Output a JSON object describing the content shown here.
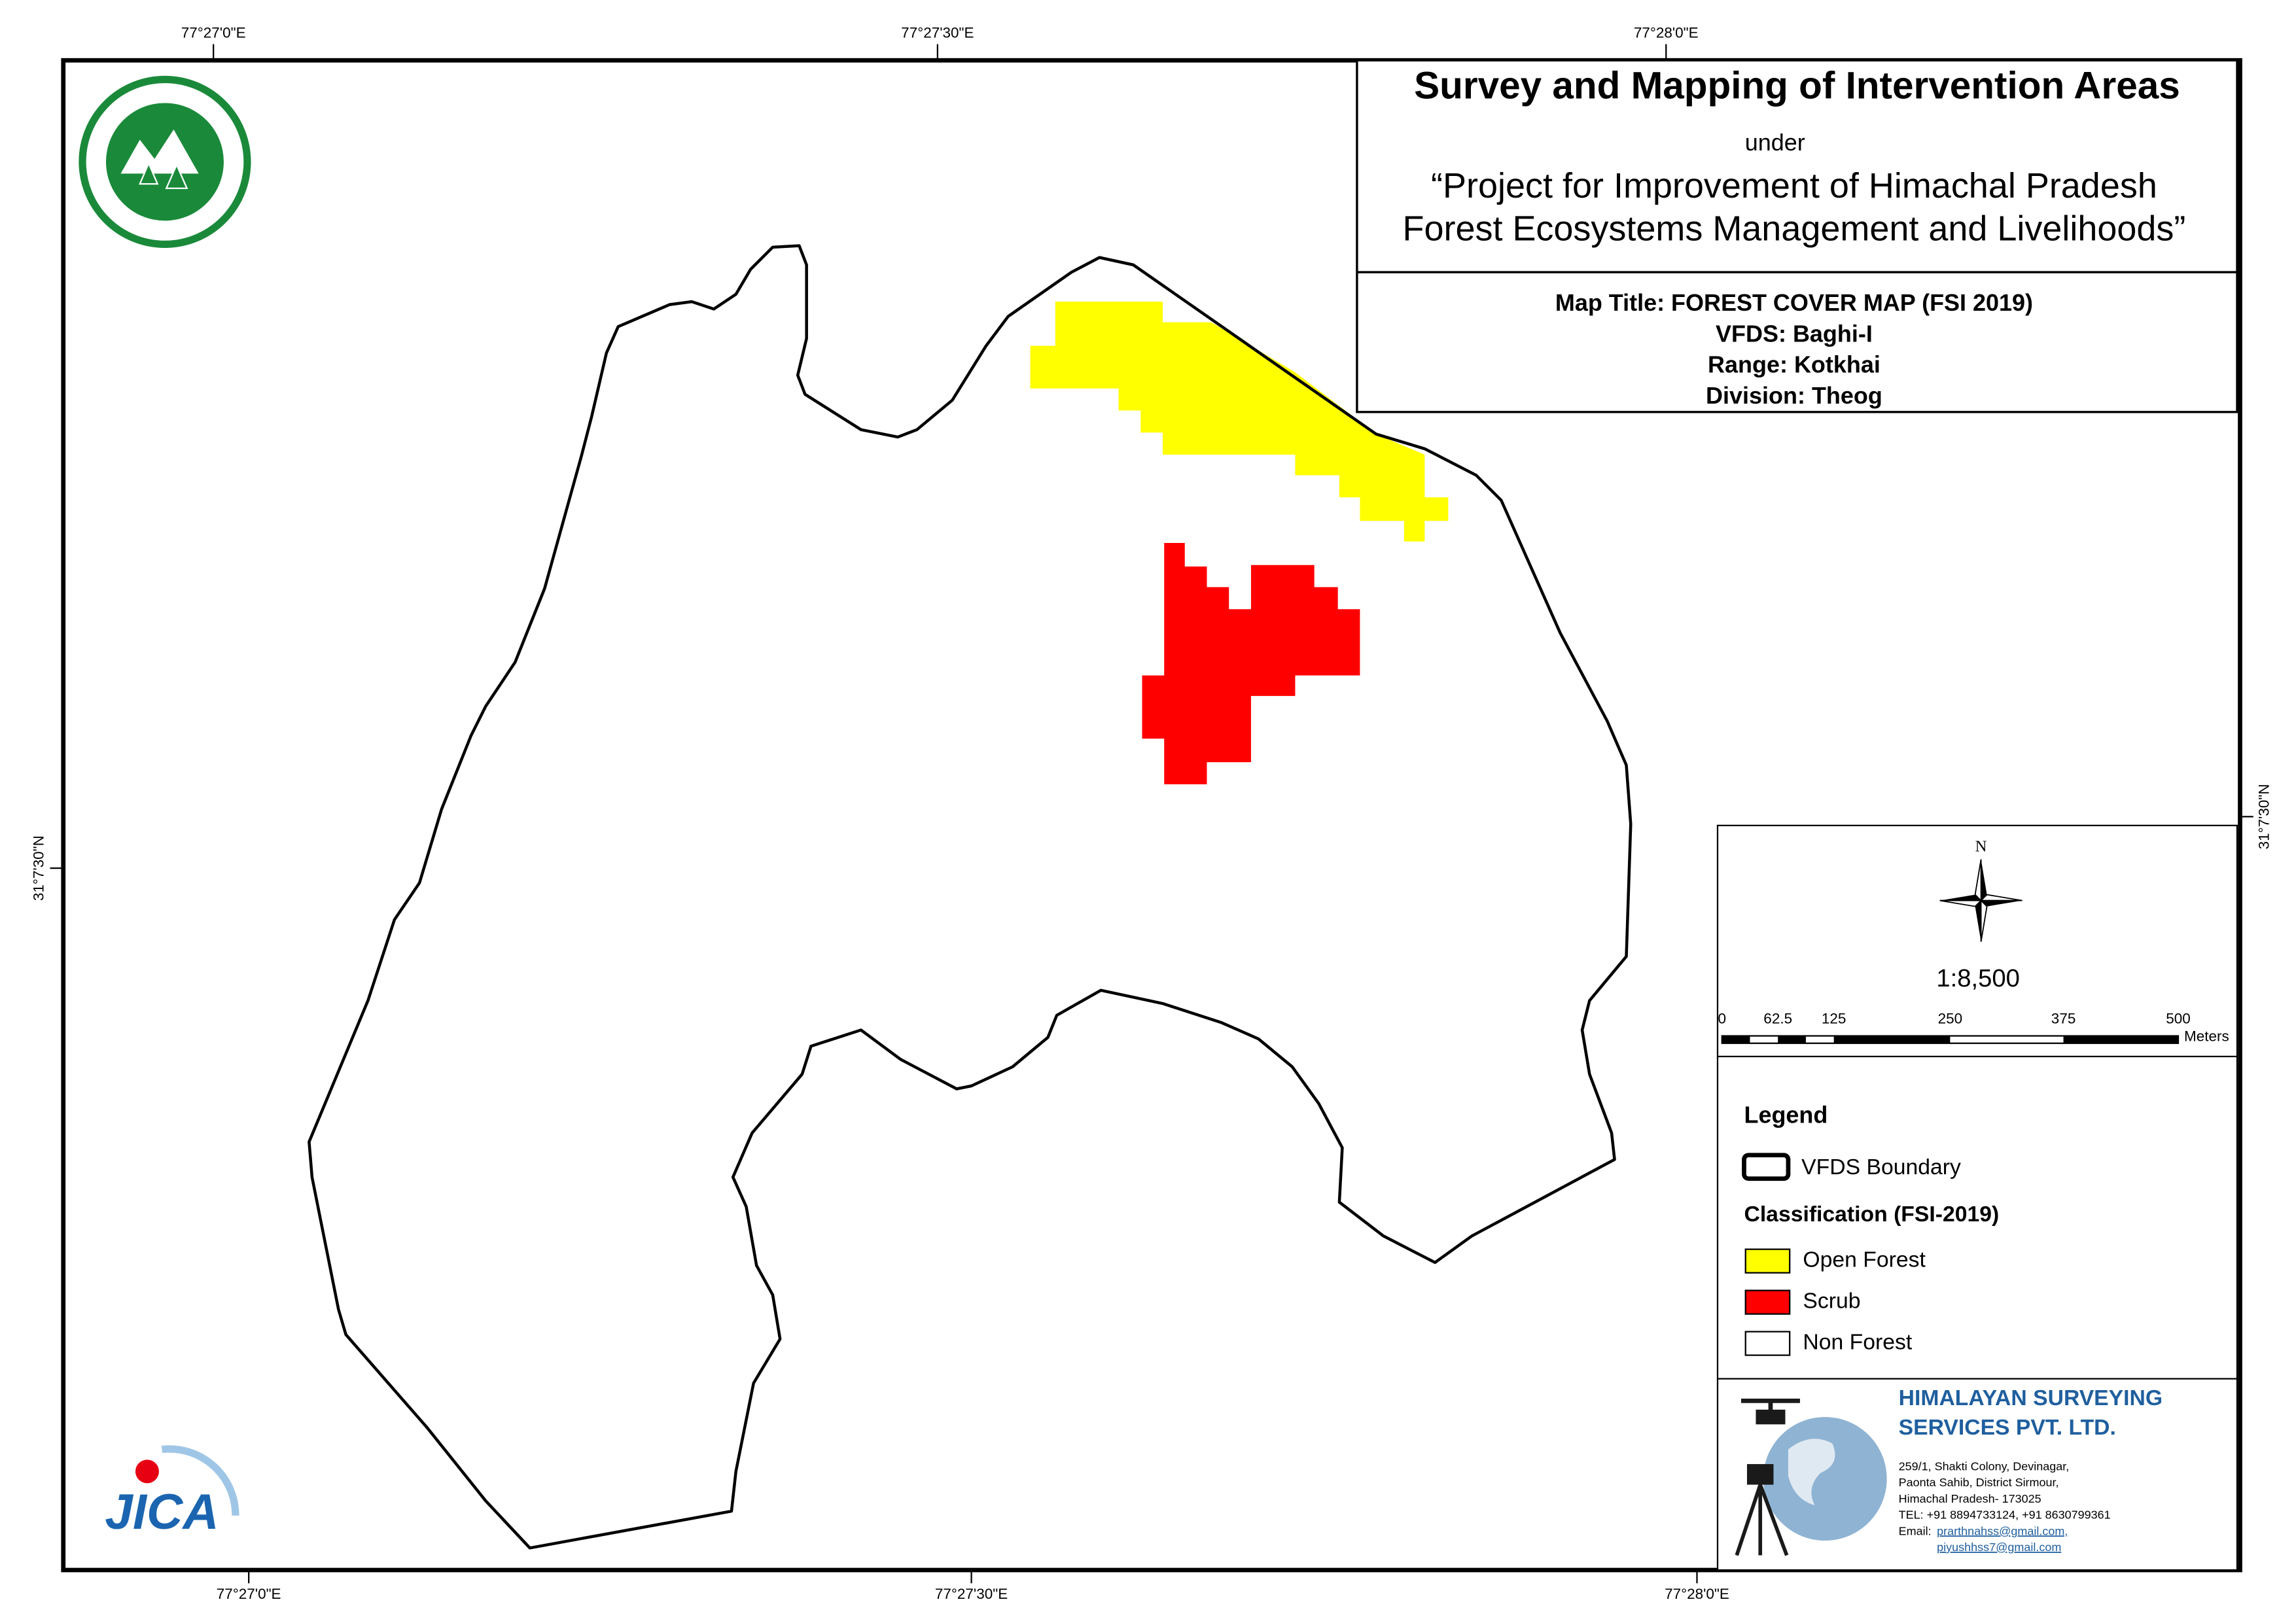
{
  "header": {
    "title": "Survey and Mapping of Intervention Areas",
    "subtitle": "under",
    "project": [
      "“Project for Improvement of Himachal Pradesh",
      "Forest Ecosystems Management and Livelihoods”"
    ]
  },
  "map_info": {
    "lines": [
      "Map Title: FOREST COVER MAP (FSI 2019)",
      "VFDS: Baghi-I",
      "Range: Kotkhai",
      "Division: Theog"
    ]
  },
  "graticule": {
    "top": [
      "77°27'0\"E",
      "77°27'30\"E",
      "77°28'0\"E"
    ],
    "bottom": [
      "77°27'0\"E",
      "77°27'30\"E",
      "77°28'0\"E"
    ],
    "left": "31°7'30\"N",
    "right": "31°7'30\"N"
  },
  "north": "N",
  "scale": "1:8,500",
  "scale_bar": {
    "labels": [
      "0",
      "62.5",
      "125",
      "250",
      "375",
      "500"
    ],
    "unit": "Meters"
  },
  "legend": {
    "title": "Legend",
    "boundary": "VFDS Boundary",
    "classification_title": "Classification (FSI-2019)",
    "classes": [
      {
        "name": "Open Forest",
        "color": "#ffff00"
      },
      {
        "name": "Scrub",
        "color": "#ff0000"
      },
      {
        "name": "Non Forest",
        "color": "#ffffff"
      }
    ]
  },
  "company": {
    "name": [
      "HIMALAYAN SURVEYING",
      "SERVICES PVT. LTD."
    ],
    "address": [
      "259/1, Shakti Colony, Devinagar,",
      "Paonta Sahib, District Sirmour,",
      "Himachal Pradesh- 173025",
      "TEL: +91 8894733124, +91 8630799361"
    ],
    "email_label": "Email:",
    "emails": [
      "prarthnahss@gmail.com,",
      "piyushhss7@gmail.com"
    ]
  },
  "logos": {
    "jica": "JICA"
  }
}
